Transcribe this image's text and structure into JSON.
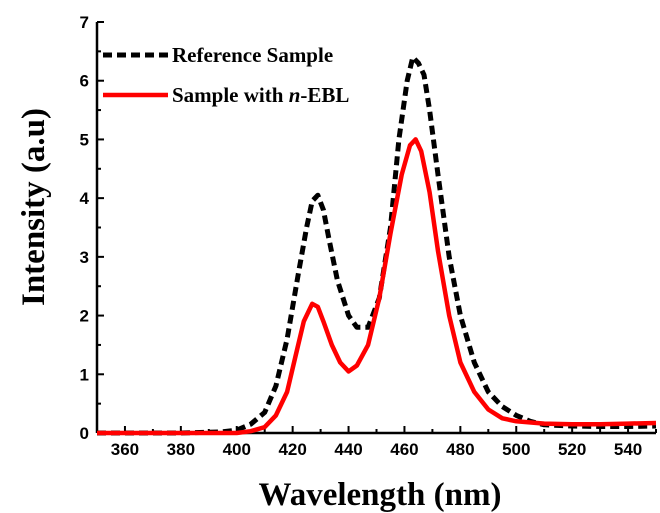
{
  "chart_data": {
    "type": "line",
    "xlabel": "Wavelength (nm)",
    "ylabel": "Intensity (a.u)",
    "xlim": [
      350,
      550
    ],
    "ylim": [
      0,
      7
    ],
    "x_ticks": [
      360,
      380,
      400,
      420,
      440,
      460,
      480,
      500,
      520,
      540
    ],
    "y_ticks": [
      0,
      1,
      2,
      3,
      4,
      5,
      6,
      7
    ],
    "grid": false,
    "legend_position": "top-left",
    "series": [
      {
        "name": "Reference Sample",
        "color": "#000000",
        "style": "dashed",
        "points": [
          [
            350,
            0.0
          ],
          [
            380,
            0.0
          ],
          [
            395,
            0.02
          ],
          [
            400,
            0.05
          ],
          [
            405,
            0.15
          ],
          [
            410,
            0.35
          ],
          [
            414,
            0.8
          ],
          [
            418,
            1.6
          ],
          [
            422,
            2.7
          ],
          [
            425,
            3.5
          ],
          [
            427,
            3.95
          ],
          [
            429,
            4.05
          ],
          [
            431,
            3.8
          ],
          [
            433,
            3.3
          ],
          [
            436,
            2.6
          ],
          [
            440,
            2.0
          ],
          [
            443,
            1.8
          ],
          [
            447,
            1.8
          ],
          [
            451,
            2.3
          ],
          [
            455,
            3.5
          ],
          [
            458,
            5.0
          ],
          [
            461,
            6.0
          ],
          [
            463,
            6.4
          ],
          [
            465,
            6.3
          ],
          [
            467,
            6.1
          ],
          [
            469,
            5.5
          ],
          [
            472,
            4.4
          ],
          [
            476,
            3.0
          ],
          [
            480,
            2.0
          ],
          [
            485,
            1.2
          ],
          [
            490,
            0.7
          ],
          [
            495,
            0.45
          ],
          [
            500,
            0.3
          ],
          [
            505,
            0.2
          ],
          [
            510,
            0.14
          ],
          [
            520,
            0.12
          ],
          [
            530,
            0.11
          ],
          [
            540,
            0.11
          ],
          [
            550,
            0.12
          ]
        ]
      },
      {
        "name": "Sample with n-EBL",
        "color": "#ff0000",
        "style": "solid",
        "points": [
          [
            350,
            0.0
          ],
          [
            400,
            0.0
          ],
          [
            405,
            0.03
          ],
          [
            410,
            0.1
          ],
          [
            414,
            0.3
          ],
          [
            418,
            0.7
          ],
          [
            421,
            1.3
          ],
          [
            424,
            1.9
          ],
          [
            427,
            2.2
          ],
          [
            429,
            2.15
          ],
          [
            431,
            1.9
          ],
          [
            434,
            1.5
          ],
          [
            437,
            1.2
          ],
          [
            440,
            1.05
          ],
          [
            443,
            1.15
          ],
          [
            447,
            1.5
          ],
          [
            451,
            2.3
          ],
          [
            455,
            3.4
          ],
          [
            459,
            4.4
          ],
          [
            462,
            4.9
          ],
          [
            464,
            5.0
          ],
          [
            466,
            4.8
          ],
          [
            469,
            4.1
          ],
          [
            472,
            3.1
          ],
          [
            476,
            2.0
          ],
          [
            480,
            1.2
          ],
          [
            485,
            0.7
          ],
          [
            490,
            0.4
          ],
          [
            495,
            0.25
          ],
          [
            500,
            0.2
          ],
          [
            510,
            0.16
          ],
          [
            520,
            0.15
          ],
          [
            530,
            0.15
          ],
          [
            540,
            0.16
          ],
          [
            550,
            0.17
          ]
        ]
      }
    ],
    "legend": [
      {
        "prefix": "Reference Sample",
        "italic": "",
        "suffix": ""
      },
      {
        "prefix": "Sample with ",
        "italic": "n",
        "suffix": "-EBL"
      }
    ]
  }
}
